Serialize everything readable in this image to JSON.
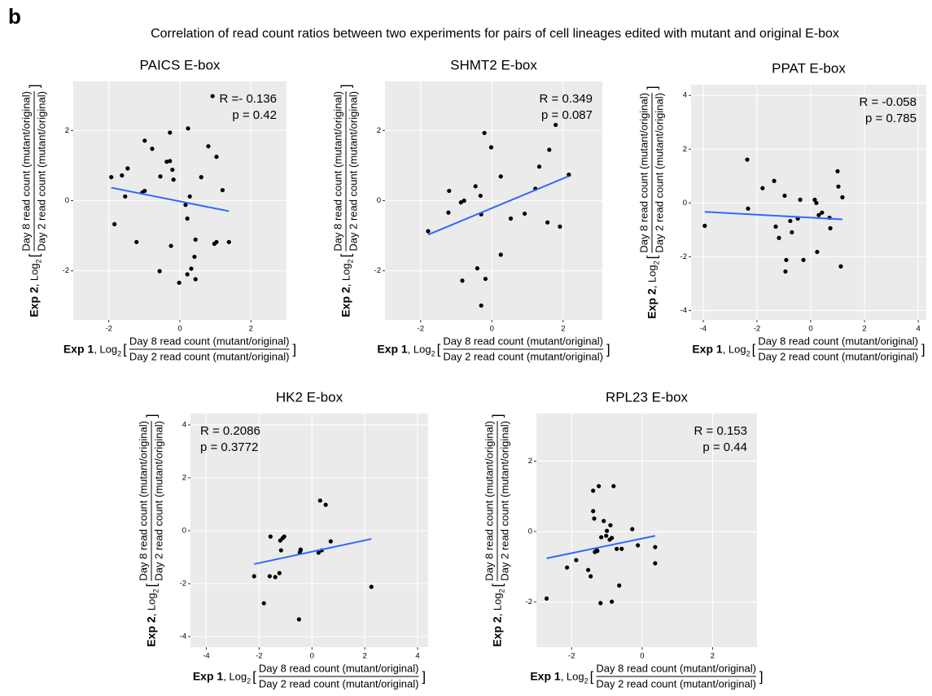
{
  "figure": {
    "label": "b",
    "title": "Correlation of read count ratios between two experiments for pairs of cell lineages edited with mutant and original E-box"
  },
  "chart_data": [
    {
      "type": "scatter",
      "title": "PAICS E-box",
      "annotations": [
        "R =- 0.136",
        "p = 0.42"
      ],
      "annotation_corner": "top-right",
      "xlabel": {
        "exp": "Exp 1",
        "log": ", Log",
        "sub": "2",
        "open": "[",
        "numerator": "Day 8 read count (mutant/original)",
        "denominator": "Day 2 read count (mutant/original)",
        "close": "]"
      },
      "ylabel": {
        "exp": "Exp 2",
        "log": ", Log",
        "sub": "2",
        "open": "[",
        "numerator": "Day 8 read count (mutant/original)",
        "denominator": "Day 2 read count (mutant/original)",
        "close": "]"
      },
      "xlim": [
        -3,
        3
      ],
      "ylim": [
        -3.4,
        3.4
      ],
      "xticks": [
        -2,
        0,
        2
      ],
      "yticks": [
        -2,
        0,
        2
      ],
      "grid": true,
      "color": "#000000",
      "x": [
        0.92,
        -1.93,
        -1.63,
        -1.47,
        -1.54,
        -1.84,
        -1.22,
        -0.99,
        -0.78,
        -1.06,
        -0.99,
        -0.55,
        -0.37,
        -0.28,
        -0.28,
        -0.21,
        -0.18,
        0.23,
        0.16,
        0.28,
        0.21,
        -0.25,
        -0.57,
        -0.02,
        0.21,
        0.32,
        0.44,
        0.44,
        0.41,
        0.6,
        0.8,
        1.03,
        1.2,
        0.97,
        1.03,
        1.38
      ],
      "y": [
        2.98,
        0.67,
        0.72,
        0.92,
        0.12,
        -0.67,
        -1.18,
        1.71,
        1.48,
        0.23,
        0.28,
        0.69,
        1.11,
        1.13,
        1.94,
        0.88,
        0.6,
        2.06,
        -0.12,
        0.12,
        -0.51,
        -1.29,
        -2.01,
        -2.34,
        -2.1,
        -1.94,
        -2.24,
        -1.11,
        -1.6,
        0.67,
        1.55,
        1.25,
        0.3,
        -1.23,
        -1.18,
        -1.18
      ],
      "trend": {
        "x": [
          -1.93,
          1.38
        ],
        "y": [
          0.37,
          -0.3
        ],
        "color": "#3366ff"
      }
    },
    {
      "type": "scatter",
      "title": "SHMT2 E-box",
      "annotations": [
        "R = 0.349",
        "p = 0.087"
      ],
      "annotation_corner": "top-right",
      "xlabel": {
        "exp": "Exp 1",
        "log": ", Log",
        "sub": "2",
        "open": "[",
        "numerator": "Day 8 read count (mutant/original)",
        "denominator": "Day 2 read count (mutant/original)",
        "close": "]"
      },
      "ylabel": {
        "exp": "Exp 2",
        "log": ", Log",
        "sub": "2",
        "open": "[",
        "numerator": "Day 8 read count (mutant/original)",
        "denominator": "Day 2 read count (mutant/original)",
        "close": "]"
      },
      "xlim": [
        -3,
        3.1
      ],
      "ylim": [
        -3.4,
        3.4
      ],
      "xticks": [
        -2,
        0,
        2
      ],
      "yticks": [
        -2,
        0,
        2
      ],
      "grid": true,
      "color": "#000000",
      "x": [
        -1.79,
        -1.2,
        -1.22,
        -0.87,
        -0.78,
        -0.83,
        -0.46,
        -0.32,
        -0.3,
        -0.41,
        -0.3,
        -0.18,
        -0.21,
        -0.02,
        0.25,
        0.25,
        0.53,
        0.92,
        1.33,
        1.22,
        1.61,
        1.56,
        1.79,
        1.91,
        2.16
      ],
      "y": [
        -0.87,
        0.28,
        -0.34,
        -0.05,
        0,
        -2.28,
        0.41,
        0.14,
        -0.39,
        -1.93,
        -2.99,
        -2.23,
        1.93,
        1.52,
        0.69,
        -1.54,
        -0.51,
        -0.37,
        0.97,
        0.34,
        1.45,
        -0.62,
        2.16,
        -0.74,
        0.74
      ],
      "trend": {
        "x": [
          -1.79,
          2.16
        ],
        "y": [
          -0.97,
          0.7
        ],
        "color": "#3366ff"
      }
    },
    {
      "type": "scatter",
      "title": "PPAT E-box",
      "annotations": [
        "R = -0.058",
        "p = 0.785"
      ],
      "annotation_corner": "top-right",
      "xlabel": {
        "exp": "Exp 1",
        "log": ", Log",
        "sub": "2",
        "open": "[",
        "numerator": "Day 8 read count (mutant/original)",
        "denominator": "Day 2 read count (mutant/original)",
        "close": "]"
      },
      "ylabel": {
        "exp": "Exp 2",
        "log": ", Log",
        "sub": "2",
        "open": "[",
        "numerator": "Day 8 read count (mutant/original)",
        "denominator": "Day 2 read count (mutant/original)",
        "close": "]"
      },
      "xlim": [
        -4.45,
        4.3
      ],
      "ylim": [
        -4.35,
        4.4
      ],
      "xticks": [
        -4,
        -2,
        0,
        2,
        4
      ],
      "yticks": [
        -4,
        -2,
        0,
        2,
        4
      ],
      "grid": true,
      "color": "#000000",
      "x": [
        -3.94,
        -2.36,
        -2.33,
        -1.79,
        -1.36,
        -1.3,
        -1.18,
        -0.97,
        -0.91,
        -0.94,
        -0.76,
        -0.7,
        -0.48,
        -0.39,
        -0.27,
        0.15,
        0.21,
        0.24,
        0.3,
        0.42,
        0.7,
        0.73,
        1.0,
        1.03,
        1.12,
        1.18
      ],
      "y": [
        -0.85,
        1.61,
        -0.21,
        0.55,
        0.82,
        -0.88,
        -1.3,
        0.27,
        -2.12,
        -2.55,
        -0.67,
        -1.09,
        -0.58,
        0.12,
        -2.12,
        0.12,
        0,
        -1.82,
        -0.45,
        -0.36,
        -0.55,
        -0.94,
        1.18,
        0.61,
        -2.36,
        0.21
      ],
      "trend": {
        "x": [
          -3.94,
          1.18
        ],
        "y": [
          -0.33,
          -0.61
        ],
        "color": "#3366ff"
      }
    },
    {
      "type": "scatter",
      "title": "HK2 E-box",
      "annotations": [
        "R = 0.2086",
        "p = 0.3772"
      ],
      "annotation_corner": "top-left",
      "xlabel": {
        "exp": "Exp 1",
        "log": ", Log",
        "sub": "2",
        "open": "[",
        "numerator": "Day 8 read count (mutant/original)",
        "denominator": "Day 2 read count (mutant/original)",
        "close": "]"
      },
      "ylabel": {
        "exp": "Exp 2",
        "log": ", Log",
        "sub": "2",
        "open": "[",
        "numerator": "Day 8 read count (mutant/original)",
        "denominator": "Day 2 read count (mutant/original)",
        "close": "]"
      },
      "xlim": [
        -4.6,
        4.4
      ],
      "ylim": [
        -4.4,
        4.43
      ],
      "xticks": [
        -4,
        -2,
        0,
        2,
        4
      ],
      "yticks": [
        -4,
        -2,
        0,
        2,
        4
      ],
      "grid": true,
      "color": "#000000",
      "x": [
        -2.19,
        -1.82,
        -1.57,
        -1.6,
        -1.39,
        -1.23,
        -1.2,
        -1.17,
        -1.11,
        -1.05,
        -0.49,
        -0.46,
        -0.43,
        -0.43,
        0.25,
        0.31,
        0.37,
        0.52,
        0.71,
        2.25
      ],
      "y": [
        -1.72,
        -2.74,
        -0.22,
        -1.72,
        -1.75,
        -1.6,
        -0.37,
        -0.74,
        -0.28,
        -0.22,
        -3.35,
        -0.83,
        -0.74,
        -0.71,
        -0.83,
        1.14,
        -0.74,
        0.98,
        -0.4,
        -2.12
      ],
      "trend": {
        "x": [
          -2.19,
          2.25
        ],
        "y": [
          -1.26,
          -0.31
        ],
        "color": "#3366ff"
      }
    },
    {
      "type": "scatter",
      "title": "RPL23 E-box",
      "annotations": [
        "R = 0.153",
        "p = 0.44"
      ],
      "annotation_corner": "top-right",
      "xlabel": {
        "exp": "Exp 1",
        "log": ", Log",
        "sub": "2",
        "open": "[",
        "numerator": "Day 8 read count (mutant/original)",
        "denominator": "Day 2 read count (mutant/original)",
        "close": "]"
      },
      "ylabel": {
        "exp": "Exp 2",
        "log": ", Log",
        "sub": "2",
        "open": "[",
        "numerator": "Day 8 read count (mutant/original)",
        "denominator": "Day 2 read count (mutant/original)",
        "close": "]"
      },
      "xlim": [
        -3,
        3.26
      ],
      "ylim": [
        -3.28,
        3.35
      ],
      "xticks": [
        -2,
        0,
        2
      ],
      "yticks": [
        -2,
        0,
        2
      ],
      "grid": true,
      "color": "#000000",
      "x": [
        -2.71,
        -2.13,
        -1.87,
        -1.53,
        -1.46,
        -1.39,
        -1.39,
        -1.36,
        -1.34,
        -1.29,
        -1.27,
        -1.23,
        -1.18,
        -1.16,
        -1.09,
        -1.02,
        -1.0,
        -0.92,
        -0.9,
        -0.86,
        -0.86,
        -0.81,
        -0.72,
        -0.65,
        -0.58,
        -0.28,
        -0.12,
        0.37,
        0.37
      ],
      "y": [
        -1.9,
        -1.02,
        -0.81,
        -1.09,
        -1.27,
        1.16,
        0.58,
        0.37,
        -0.58,
        -0.53,
        -0.55,
        1.29,
        -2.03,
        -0.16,
        0.3,
        -0.12,
        0.02,
        -0.23,
        0.18,
        -1.99,
        -0.18,
        1.29,
        -0.49,
        -1.53,
        -0.49,
        0.07,
        -0.39,
        -0.44,
        -0.9
      ],
      "trend": {
        "x": [
          -2.71,
          0.37
        ],
        "y": [
          -0.76,
          -0.12
        ],
        "color": "#3366ff"
      }
    }
  ]
}
